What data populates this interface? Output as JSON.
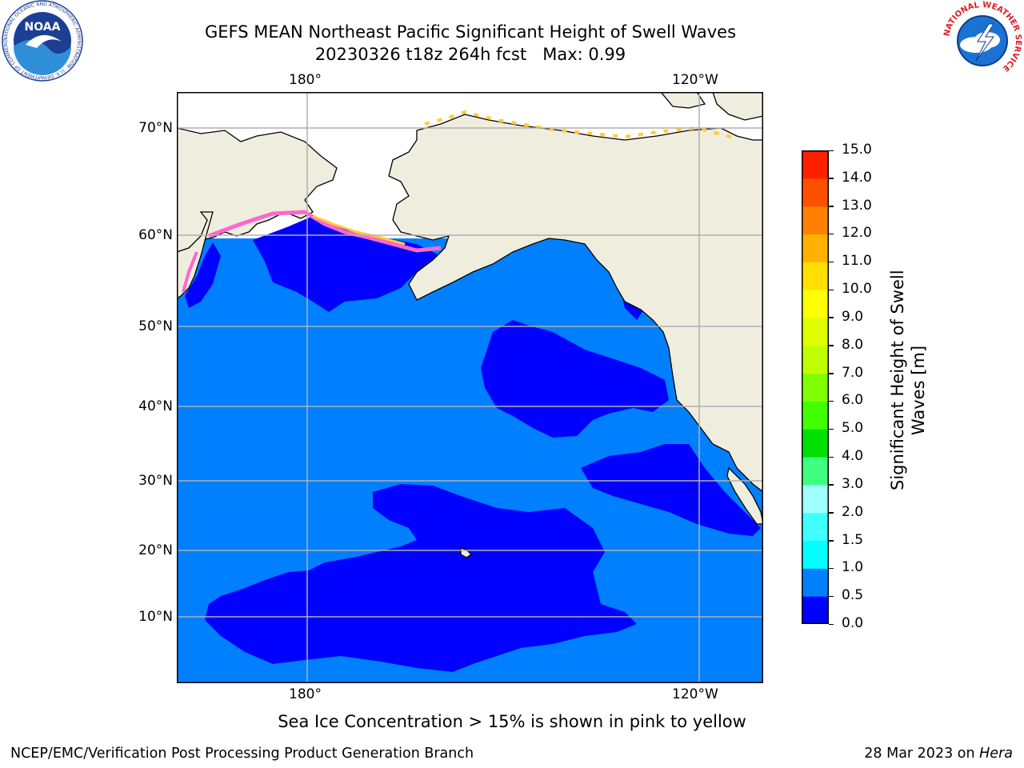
{
  "header": {
    "title_line1": "GEFS MEAN Northeast Pacific Significant Height of Swell Waves",
    "title_line2": "20230326 t18z 264h fcst   Max: 0.99"
  },
  "logos": {
    "noaa": "NOAA",
    "noaa_ring": "NATIONAL OCEANIC AND ATMOSPHERIC ADMINISTRATION · U.S. DEPARTMENT OF COMMERCE",
    "nws_ring": "NATIONAL WEATHER SERVICE"
  },
  "map": {
    "lon_ticks_top": [
      "180°",
      "120°W"
    ],
    "lon_ticks_bottom": [
      "180°",
      "120°W"
    ],
    "lat_ticks": [
      "70°N",
      "60°N",
      "50°N",
      "40°N",
      "30°N",
      "20°N",
      "10°N"
    ],
    "colors": {
      "land": "#efedde",
      "band_0_05": "#0000ff",
      "band_05_1": "#0080ff",
      "ice": "#ffffff",
      "ice_edge": "#ff66cc",
      "ice_edge2": "#ffcc33",
      "grid": "#b0b0b0"
    }
  },
  "colorbar": {
    "title_line1": "Significant Height of Swell",
    "title_line2": "Waves [m]",
    "levels": [
      "0.0",
      "0.5",
      "1.0",
      "1.5",
      "2.0",
      "3.0",
      "4.0",
      "5.0",
      "6.0",
      "7.0",
      "8.0",
      "9.0",
      "10.0",
      "11.0",
      "12.0",
      "13.0",
      "14.0",
      "15.0"
    ],
    "colors": [
      "#0000ff",
      "#0080ff",
      "#00ffff",
      "#40ffff",
      "#a0ffff",
      "#40ff80",
      "#00e000",
      "#40ff00",
      "#80ff00",
      "#c0ff00",
      "#e0ff00",
      "#ffff00",
      "#ffe000",
      "#ffb000",
      "#ff8000",
      "#ff5000",
      "#ff2000"
    ]
  },
  "footnote": "Sea Ice Concentration > 15% is shown in pink to yellow",
  "footer": {
    "left": "NCEP/EMC/Verification Post Processing Product Generation Branch",
    "right_prefix": "28 Mar 2023 on ",
    "right_host": "Hera"
  }
}
